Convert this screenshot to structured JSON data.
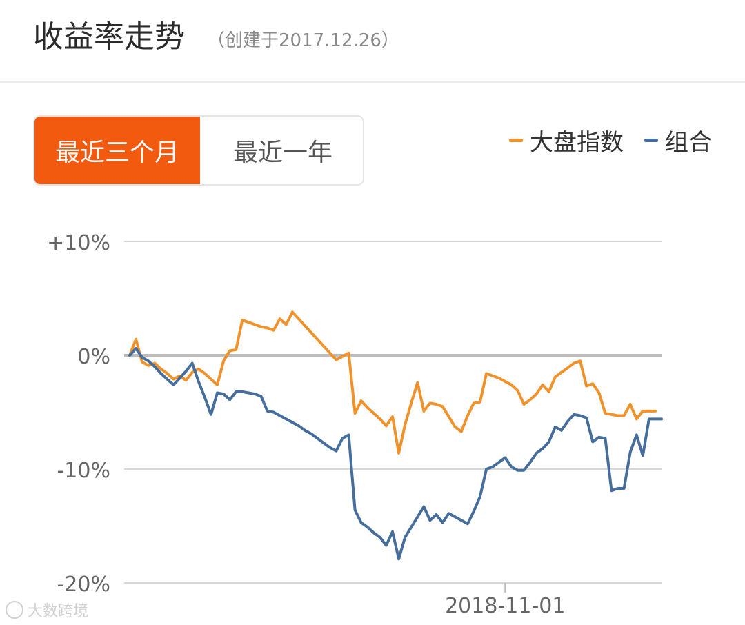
{
  "header": {
    "title": "收益率走势",
    "subtitle": "（创建于2017.12.26）"
  },
  "tabs": [
    {
      "label": "最近三个月",
      "active": true
    },
    {
      "label": "最近一年",
      "active": false
    }
  ],
  "legend": [
    {
      "label": "大盘指数",
      "color": "#f0922b"
    },
    {
      "label": "组合",
      "color": "#466e9c"
    }
  ],
  "watermark": {
    "text": "大数跨境"
  },
  "chart_data": {
    "type": "line",
    "title": "",
    "xlabel": "",
    "ylabel": "",
    "ylim": [
      -20,
      10
    ],
    "y_ticks": [
      10,
      0,
      -10,
      -20
    ],
    "y_tick_labels": [
      "+10%",
      "0%",
      "-10%",
      "-20%"
    ],
    "x_tick_labels": [
      {
        "label": "2018-11-01",
        "index": 60
      }
    ],
    "grid": true,
    "legend_position": "top-right",
    "baseline": 0,
    "series": [
      {
        "name": "大盘指数",
        "color": "#f0922b",
        "values": [
          0.0,
          1.4,
          -0.6,
          -0.9,
          -0.7,
          -1.2,
          -1.6,
          -2.1,
          -1.8,
          -2.2,
          -1.5,
          -1.2,
          -1.6,
          -2.1,
          -2.6,
          -0.5,
          0.4,
          0.5,
          3.1,
          2.9,
          2.7,
          2.5,
          2.4,
          2.2,
          3.2,
          2.7,
          3.8,
          3.2,
          2.6,
          2.0,
          1.4,
          0.8,
          0.2,
          -0.4,
          -0.1,
          0.2,
          -5.1,
          -4.0,
          -4.6,
          -5.1,
          -5.6,
          -6.2,
          -5.4,
          -8.6,
          -6.1,
          -4.2,
          -2.4,
          -4.9,
          -4.2,
          -4.3,
          -4.5,
          -5.4,
          -6.3,
          -6.7,
          -5.3,
          -4.2,
          -4.1,
          -1.6,
          -1.8,
          -2.0,
          -2.3,
          -2.6,
          -3.1,
          -4.3,
          -3.9,
          -3.4,
          -2.6,
          -3.2,
          -1.9,
          -1.5,
          -1.1,
          -0.7,
          -0.5,
          -2.7,
          -2.5,
          -3.3,
          -5.1,
          -5.2,
          -5.3,
          -5.3,
          -4.3,
          -5.6,
          -4.9,
          -4.9,
          -4.9
        ]
      },
      {
        "name": "组合",
        "color": "#466e9c",
        "values": [
          0.0,
          0.6,
          -0.2,
          -0.5,
          -1.0,
          -1.6,
          -2.1,
          -2.6,
          -2.0,
          -1.4,
          -0.7,
          -2.3,
          -3.7,
          -5.2,
          -3.3,
          -3.4,
          -3.9,
          -3.2,
          -3.2,
          -3.3,
          -3.4,
          -3.6,
          -4.9,
          -5.0,
          -5.3,
          -5.6,
          -5.9,
          -6.2,
          -6.6,
          -6.9,
          -7.3,
          -7.7,
          -8.1,
          -8.4,
          -7.3,
          -7.0,
          -13.6,
          -14.7,
          -15.1,
          -15.6,
          -16.0,
          -16.7,
          -15.5,
          -17.9,
          -16.0,
          -15.1,
          -14.2,
          -13.3,
          -14.5,
          -14.0,
          -14.7,
          -13.9,
          -14.2,
          -14.5,
          -14.8,
          -13.7,
          -12.4,
          -10.0,
          -9.8,
          -9.4,
          -9.0,
          -9.8,
          -10.1,
          -10.1,
          -9.4,
          -8.6,
          -8.2,
          -7.6,
          -6.3,
          -6.6,
          -5.8,
          -5.2,
          -5.3,
          -5.5,
          -7.6,
          -7.2,
          -7.3,
          -11.9,
          -11.7,
          -11.7,
          -8.5,
          -7.0,
          -8.8,
          -5.6,
          -5.6,
          -5.6
        ]
      }
    ]
  }
}
